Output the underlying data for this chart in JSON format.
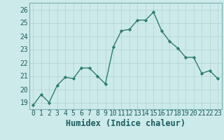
{
  "x": [
    0,
    1,
    2,
    3,
    4,
    5,
    6,
    7,
    8,
    9,
    10,
    11,
    12,
    13,
    14,
    15,
    16,
    17,
    18,
    19,
    20,
    21,
    22,
    23
  ],
  "y": [
    18.8,
    19.6,
    19.0,
    20.3,
    20.9,
    20.8,
    21.6,
    21.6,
    21.0,
    20.4,
    23.2,
    24.4,
    24.5,
    25.2,
    25.2,
    25.8,
    24.4,
    23.6,
    23.1,
    22.4,
    22.4,
    21.2,
    21.4,
    20.8
  ],
  "line_color": "#2d7d6e",
  "marker": "D",
  "marker_size": 2.2,
  "bg_color": "#cdeaea",
  "grid_color": "#b8d8d8",
  "xlabel": "Humidex (Indice chaleur)",
  "xlim": [
    -0.5,
    23.5
  ],
  "ylim": [
    18.5,
    26.5
  ],
  "yticks": [
    19,
    20,
    21,
    22,
    23,
    24,
    25,
    26
  ],
  "xticks": [
    0,
    1,
    2,
    3,
    4,
    5,
    6,
    7,
    8,
    9,
    10,
    11,
    12,
    13,
    14,
    15,
    16,
    17,
    18,
    19,
    20,
    21,
    22,
    23
  ],
  "xlabel_fontsize": 8.5,
  "tick_fontsize": 7.0,
  "line_width": 1.0
}
